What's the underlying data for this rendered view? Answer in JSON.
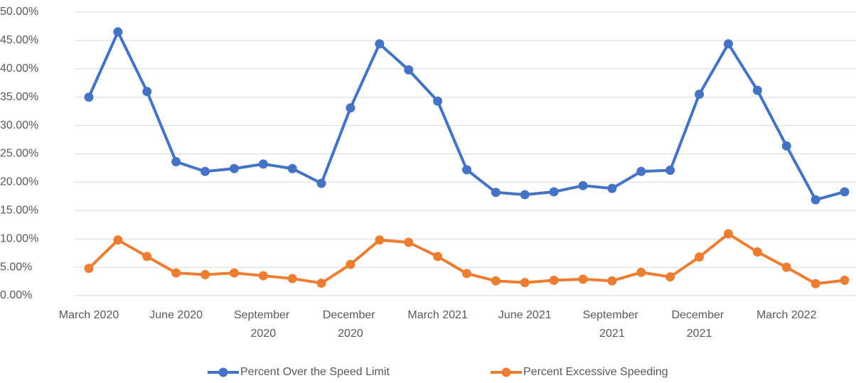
{
  "chart_data": {
    "type": "line",
    "categories": [
      "March 2020",
      null,
      null,
      "June 2020",
      null,
      null,
      "September 2020",
      null,
      null,
      "December 2020",
      null,
      null,
      "March 2021",
      null,
      null,
      "June 2021",
      null,
      null,
      "September 2021",
      null,
      null,
      "December 2021",
      null,
      null,
      "March 2022",
      null,
      null
    ],
    "series": [
      {
        "name": "Percent Over the Speed Limit",
        "color": "#4472c4",
        "values": [
          35.0,
          46.5,
          36.0,
          23.6,
          21.9,
          22.4,
          23.2,
          22.4,
          19.8,
          33.1,
          44.4,
          39.8,
          34.3,
          22.2,
          18.2,
          17.8,
          18.3,
          19.4,
          18.9,
          21.9,
          22.1,
          35.5,
          44.4,
          36.2,
          26.4,
          16.9,
          18.3
        ]
      },
      {
        "name": "Percent Excessive Speeding",
        "color": "#ed7d31",
        "values": [
          4.8,
          9.8,
          6.9,
          4.0,
          3.7,
          4.0,
          3.5,
          3.0,
          2.2,
          5.5,
          9.8,
          9.4,
          6.9,
          3.9,
          2.6,
          2.3,
          2.7,
          2.9,
          2.6,
          4.1,
          3.3,
          6.8,
          10.9,
          7.7,
          5.0,
          2.1,
          2.7
        ]
      }
    ],
    "ylim": [
      0,
      50
    ],
    "yticks": [
      {
        "value": 0,
        "label": "0.00%"
      },
      {
        "value": 5,
        "label": "5.00%"
      },
      {
        "value": 10,
        "label": "10.00%"
      },
      {
        "value": 15,
        "label": "15.00%"
      },
      {
        "value": 20,
        "label": "20.00%"
      },
      {
        "value": 25,
        "label": "25.00%"
      },
      {
        "value": 30,
        "label": "30.00%"
      },
      {
        "value": 35,
        "label": "35.00%"
      },
      {
        "value": 40,
        "label": "40.00%"
      },
      {
        "value": 45,
        "label": "45.00%"
      },
      {
        "value": 50,
        "label": "50.00%"
      }
    ],
    "grid": true,
    "legend": "bottom"
  }
}
